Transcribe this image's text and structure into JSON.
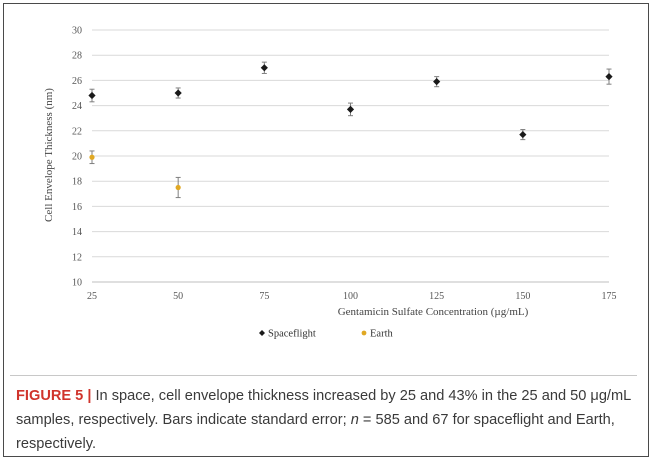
{
  "chart_data": {
    "type": "scatter",
    "title": "",
    "xlabel": "Gentamicin Sulfate Concentration (µg/mL)",
    "ylabel": "Cell Envelope Thickness (nm)",
    "xlim": [
      25,
      175
    ],
    "ylim": [
      10,
      30
    ],
    "x_ticks": [
      "25",
      "50",
      "75",
      "100",
      "125",
      "150",
      "175"
    ],
    "y_ticks": [
      "10",
      "12",
      "14",
      "16",
      "18",
      "20",
      "22",
      "24",
      "26",
      "28",
      "30"
    ],
    "grid": "horizontal",
    "legend_position": "bottom",
    "series": [
      {
        "name": "Spaceflight",
        "marker": "diamond",
        "color": "#1a1a1a",
        "points": [
          {
            "x": 25,
            "y": 24.8,
            "err": 0.5
          },
          {
            "x": 50,
            "y": 25.0,
            "err": 0.4
          },
          {
            "x": 75,
            "y": 27.0,
            "err": 0.45
          },
          {
            "x": 100,
            "y": 23.7,
            "err": 0.5
          },
          {
            "x": 125,
            "y": 25.9,
            "err": 0.4
          },
          {
            "x": 150,
            "y": 21.7,
            "err": 0.4
          },
          {
            "x": 175,
            "y": 26.3,
            "err": 0.6
          }
        ]
      },
      {
        "name": "Earth",
        "marker": "circle",
        "color": "#e0a823",
        "points": [
          {
            "x": 25,
            "y": 19.9,
            "err": 0.5
          },
          {
            "x": 50,
            "y": 17.5,
            "err": 0.8
          }
        ]
      }
    ]
  },
  "caption": {
    "label": "FIGURE 5 |",
    "text": " In space, cell envelope thickness increased by 25 and 43% in the 25 and 50 μg/mL samples, respectively. Bars indicate standard error; ",
    "n_symbol": "n",
    "tail": " = 585 and 67 for spaceflight and Earth, respectively."
  }
}
